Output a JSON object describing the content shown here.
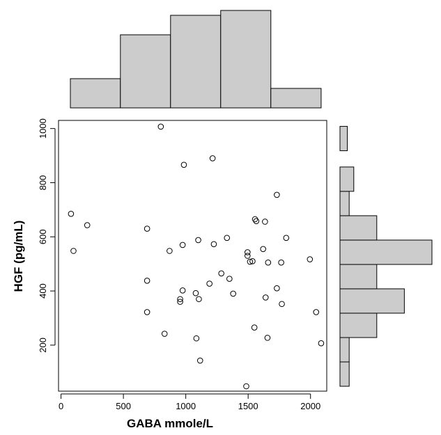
{
  "chart_data": {
    "type": "scatter",
    "xlabel": "GABA mmole/L",
    "ylabel": "HGF (pg/mL)",
    "xlim": [
      -20,
      2130
    ],
    "ylim": [
      30,
      1030
    ],
    "x_ticks": [
      0,
      500,
      1000,
      1500,
      2000
    ],
    "y_ticks": [
      200,
      400,
      600,
      800,
      1000
    ],
    "grid": false,
    "point_style": "open-circle",
    "histogram_fill": "#cccccc",
    "points": [
      {
        "x": 80,
        "y": 685
      },
      {
        "x": 100,
        "y": 548
      },
      {
        "x": 210,
        "y": 643
      },
      {
        "x": 690,
        "y": 630
      },
      {
        "x": 690,
        "y": 438
      },
      {
        "x": 690,
        "y": 322
      },
      {
        "x": 800,
        "y": 1007
      },
      {
        "x": 830,
        "y": 242
      },
      {
        "x": 870,
        "y": 548
      },
      {
        "x": 955,
        "y": 370
      },
      {
        "x": 955,
        "y": 360
      },
      {
        "x": 975,
        "y": 402
      },
      {
        "x": 975,
        "y": 570
      },
      {
        "x": 985,
        "y": 866
      },
      {
        "x": 1080,
        "y": 392
      },
      {
        "x": 1085,
        "y": 225
      },
      {
        "x": 1100,
        "y": 588
      },
      {
        "x": 1105,
        "y": 370
      },
      {
        "x": 1115,
        "y": 143
      },
      {
        "x": 1190,
        "y": 427
      },
      {
        "x": 1215,
        "y": 890
      },
      {
        "x": 1225,
        "y": 573
      },
      {
        "x": 1285,
        "y": 465
      },
      {
        "x": 1330,
        "y": 596
      },
      {
        "x": 1350,
        "y": 445
      },
      {
        "x": 1380,
        "y": 390
      },
      {
        "x": 1485,
        "y": 48
      },
      {
        "x": 1495,
        "y": 543
      },
      {
        "x": 1495,
        "y": 530
      },
      {
        "x": 1515,
        "y": 508
      },
      {
        "x": 1535,
        "y": 510
      },
      {
        "x": 1550,
        "y": 265
      },
      {
        "x": 1555,
        "y": 665
      },
      {
        "x": 1565,
        "y": 658
      },
      {
        "x": 1620,
        "y": 555
      },
      {
        "x": 1635,
        "y": 656
      },
      {
        "x": 1640,
        "y": 376
      },
      {
        "x": 1655,
        "y": 227
      },
      {
        "x": 1660,
        "y": 505
      },
      {
        "x": 1730,
        "y": 755
      },
      {
        "x": 1730,
        "y": 410
      },
      {
        "x": 1765,
        "y": 505
      },
      {
        "x": 1770,
        "y": 352
      },
      {
        "x": 1805,
        "y": 596
      },
      {
        "x": 1995,
        "y": 517
      },
      {
        "x": 2045,
        "y": 322
      },
      {
        "x": 2085,
        "y": 207
      }
    ],
    "x_histogram": {
      "bins": [
        {
          "from": 75,
          "to": 476,
          "count": 3.6
        },
        {
          "from": 476,
          "to": 878,
          "count": 9.0
        },
        {
          "from": 878,
          "to": 1280,
          "count": 11.4
        },
        {
          "from": 1280,
          "to": 1682,
          "count": 12.0
        },
        {
          "from": 1682,
          "to": 2085,
          "count": 2.4
        }
      ],
      "max": 12
    },
    "y_histogram": {
      "bins": [
        {
          "from": 48,
          "to": 138,
          "count": 1
        },
        {
          "from": 138,
          "to": 228,
          "count": 1
        },
        {
          "from": 228,
          "to": 318,
          "count": 4
        },
        {
          "from": 318,
          "to": 408,
          "count": 7
        },
        {
          "from": 408,
          "to": 498,
          "count": 4
        },
        {
          "from": 498,
          "to": 588,
          "count": 10
        },
        {
          "from": 588,
          "to": 678,
          "count": 4
        },
        {
          "from": 678,
          "to": 768,
          "count": 1
        },
        {
          "from": 768,
          "to": 858,
          "count": 1.5
        },
        {
          "from": 858,
          "to": 918,
          "count": 0
        },
        {
          "from": 918,
          "to": 1008,
          "count": 0.8
        }
      ],
      "max": 10
    }
  }
}
